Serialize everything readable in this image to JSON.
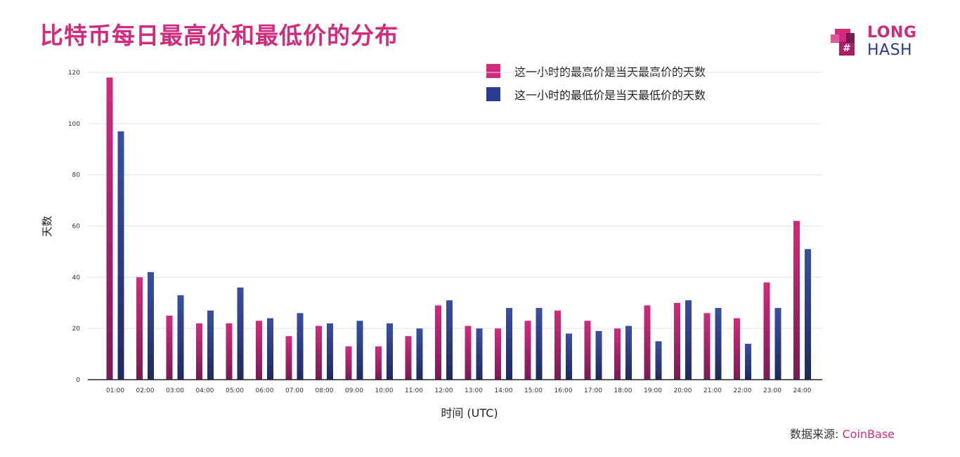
{
  "title": "比特币每日最高价和最低价的分布",
  "logo": {
    "line1": "LONG",
    "line2": "HASH"
  },
  "source": {
    "prefix": "数据来源: ",
    "name": "CoinBase"
  },
  "colors": {
    "high": "#d22a7d",
    "low": "#2a3a8c",
    "title": "#d22a7d"
  },
  "chart_data": {
    "type": "bar",
    "categories": [
      "01:00",
      "02:00",
      "03:00",
      "04:00",
      "05:00",
      "06:00",
      "07:00",
      "08:00",
      "09:00",
      "10:00",
      "11:00",
      "12:00",
      "13:00",
      "14:00",
      "15:00",
      "16:00",
      "17:00",
      "18:00",
      "19:00",
      "20:00",
      "21:00",
      "22:00",
      "23:00",
      "24:00"
    ],
    "series": [
      {
        "name": "这一小时的最高价是当天最高价的天数",
        "values": [
          118,
          40,
          25,
          22,
          22,
          23,
          17,
          21,
          13,
          13,
          17,
          29,
          21,
          20,
          23,
          27,
          23,
          20,
          29,
          30,
          26,
          24,
          38,
          62
        ]
      },
      {
        "name": "这一小时的最低价是当天最低价的天数",
        "values": [
          97,
          42,
          33,
          27,
          36,
          24,
          26,
          22,
          23,
          22,
          20,
          31,
          20,
          28,
          28,
          18,
          19,
          21,
          15,
          31,
          28,
          14,
          28,
          51
        ]
      }
    ],
    "yticks": [
      0,
      20,
      40,
      60,
      80,
      100,
      120
    ],
    "ylim": [
      0,
      120
    ],
    "xlabel": "时间 (UTC)",
    "ylabel": "天数",
    "grid": true,
    "legend_position": "top-right"
  }
}
